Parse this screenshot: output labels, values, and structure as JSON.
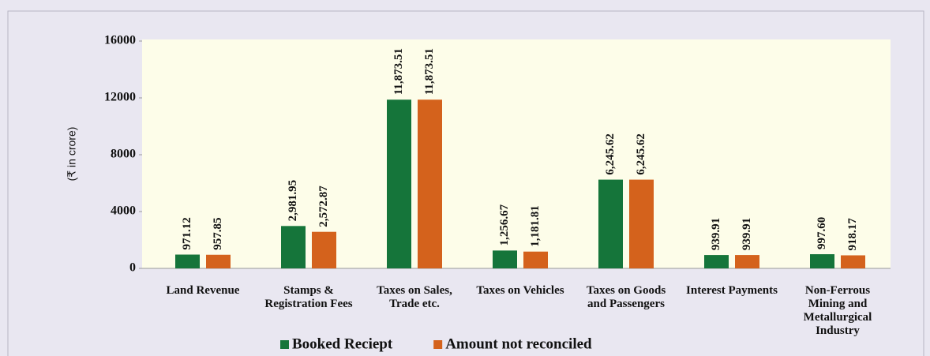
{
  "chart_data": {
    "type": "bar",
    "ylabel": "(₹ in crore)",
    "categories": [
      "Land Revenue",
      "Stamps & Registration Fees",
      "Taxes on Sales, Trade etc.",
      "Taxes on Vehicles",
      "Taxes on Goods and Passengers",
      "Interest Payments",
      "Non-Ferrous Mining and Metallurgical Industry"
    ],
    "series": [
      {
        "name": "Booked Reciept",
        "color": "#15753a",
        "values": [
          971.12,
          2981.95,
          11873.51,
          1256.67,
          6245.62,
          939.91,
          997.6
        ],
        "value_labels": [
          "971.12",
          "2,981.95",
          "11,873.51",
          "1,256.67",
          "6,245.62",
          "939.91",
          "997.60"
        ]
      },
      {
        "name": "Amount not reconciled",
        "color": "#d4621c",
        "values": [
          957.85,
          2572.87,
          11873.51,
          1181.81,
          6245.62,
          939.91,
          918.17
        ],
        "value_labels": [
          "957.85",
          "2,572.87",
          "11,873.51",
          "1,181.81",
          "6,245.62",
          "939.91",
          "918.17"
        ]
      }
    ],
    "ylim": [
      0,
      16000
    ],
    "yticks": [
      0,
      4000,
      8000,
      12000,
      16000
    ],
    "grid": false
  }
}
